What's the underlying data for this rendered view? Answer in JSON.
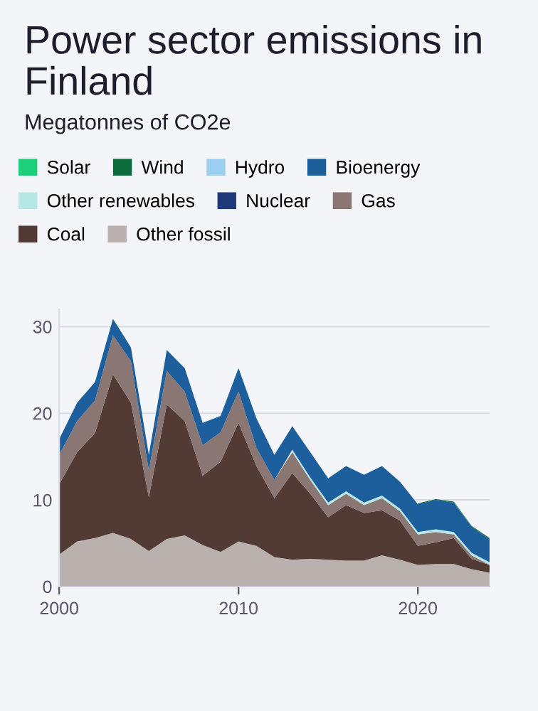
{
  "chart_data": {
    "type": "area",
    "stacked": true,
    "title": "Power sector emissions in Finland",
    "subtitle": "Megatonnes of CO2e",
    "x": [
      2000,
      2001,
      2002,
      2003,
      2004,
      2005,
      2006,
      2007,
      2008,
      2009,
      2010,
      2011,
      2012,
      2013,
      2014,
      2015,
      2016,
      2017,
      2018,
      2019,
      2020,
      2021,
      2022,
      2023,
      2024
    ],
    "series": [
      {
        "name": "Other fossil",
        "color": "#b8b1ad",
        "values": [
          3.7,
          5.2,
          5.6,
          6.2,
          5.5,
          4.1,
          5.5,
          5.9,
          4.8,
          4.0,
          5.2,
          4.7,
          3.4,
          3.1,
          3.2,
          3.1,
          3.0,
          3.0,
          3.6,
          3.1,
          2.5,
          2.6,
          2.6,
          2.0,
          1.6
        ]
      },
      {
        "name": "Coal",
        "color": "#523a35",
        "values": [
          8.1,
          10.3,
          12.1,
          18.3,
          15.7,
          6.2,
          15.5,
          13.2,
          8.0,
          10.4,
          13.7,
          9.2,
          6.8,
          10.0,
          7.5,
          4.9,
          6.4,
          5.5,
          5.2,
          4.5,
          2.2,
          2.5,
          3.0,
          1.2,
          0.9
        ]
      },
      {
        "name": "Gas",
        "color": "#8a7672",
        "values": [
          3.4,
          3.6,
          3.8,
          4.5,
          4.8,
          3.1,
          3.9,
          3.4,
          3.5,
          3.4,
          3.6,
          2.1,
          2.1,
          2.4,
          1.6,
          1.4,
          1.3,
          0.9,
          1.4,
          1.1,
          1.3,
          1.2,
          0.4,
          0.4,
          0.0
        ]
      },
      {
        "name": "Nuclear",
        "color": "#1f3a7a",
        "values": [
          null,
          null,
          null,
          null,
          null,
          null,
          null,
          null,
          null,
          null,
          null,
          null,
          null,
          null,
          null,
          null,
          null,
          null,
          null,
          null,
          null,
          null,
          null,
          null,
          null
        ]
      },
      {
        "name": "Other renewables",
        "color": "#b5e8e4",
        "values": [
          null,
          null,
          null,
          null,
          null,
          null,
          null,
          null,
          null,
          null,
          null,
          null,
          null,
          0.3,
          0.3,
          0.3,
          0.3,
          0.3,
          0.3,
          0.3,
          0.3,
          0.3,
          0.3,
          0.3,
          0.3
        ]
      },
      {
        "name": "Bioenergy",
        "color": "#1c5f9c",
        "values": [
          1.8,
          2.1,
          2.1,
          1.9,
          1.6,
          1.8,
          2.4,
          2.7,
          2.6,
          1.9,
          2.7,
          3.4,
          2.9,
          2.7,
          2.9,
          2.8,
          2.9,
          3.2,
          3.4,
          3.1,
          3.2,
          3.4,
          3.4,
          3.0,
          2.7
        ]
      },
      {
        "name": "Hydro",
        "color": "#9ccfef",
        "values": [
          null,
          null,
          null,
          null,
          null,
          null,
          null,
          null,
          null,
          null,
          null,
          null,
          null,
          null,
          null,
          null,
          null,
          null,
          null,
          null,
          null,
          null,
          null,
          null,
          null
        ]
      },
      {
        "name": "Wind",
        "color": "#0b6b3a",
        "values": [
          null,
          null,
          null,
          null,
          null,
          null,
          null,
          null,
          null,
          null,
          null,
          null,
          null,
          null,
          null,
          null,
          null,
          null,
          null,
          null,
          0.1,
          0.1,
          0.1,
          0.1,
          0.1
        ]
      },
      {
        "name": "Solar",
        "color": "#1ecf7a",
        "values": [
          null,
          null,
          null,
          null,
          null,
          null,
          null,
          null,
          null,
          null,
          null,
          null,
          null,
          null,
          null,
          null,
          null,
          null,
          null,
          null,
          null,
          null,
          null,
          null,
          null
        ]
      }
    ],
    "xlim": [
      2000,
      2024
    ],
    "ylim": [
      0,
      32
    ],
    "xticks": [
      2000,
      2010,
      2020
    ],
    "yticks": [
      0,
      10,
      20,
      30
    ],
    "grid": "y",
    "legend": "top"
  }
}
